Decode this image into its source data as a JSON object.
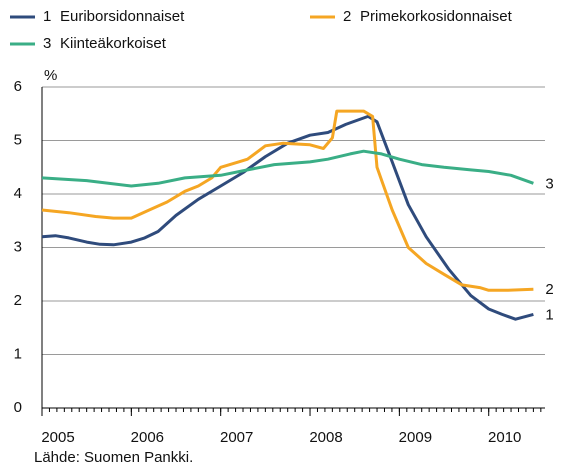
{
  "chart_data": {
    "type": "line",
    "y_label": "%",
    "source": "Lähde: Suomen Pankki.",
    "xlim": [
      2005,
      2010.63
    ],
    "xticks": [
      2005,
      2006,
      2007,
      2008,
      2009,
      2010
    ],
    "ylim": [
      0,
      6
    ],
    "yticks": [
      0,
      1,
      2,
      3,
      4,
      5,
      6
    ],
    "grid": true,
    "legend": "top",
    "series": [
      {
        "label": "1",
        "name": "Euriborsidonnaiset",
        "color": "#2f4b7c",
        "x": [
          2005.0,
          2005.15,
          2005.3,
          2005.5,
          2005.65,
          2005.8,
          2006.0,
          2006.15,
          2006.3,
          2006.5,
          2006.75,
          2007.0,
          2007.25,
          2007.5,
          2007.75,
          2008.0,
          2008.2,
          2008.4,
          2008.65,
          2008.75,
          2008.92,
          2009.1,
          2009.3,
          2009.55,
          2009.8,
          2010.0,
          2010.15,
          2010.3,
          2010.5
        ],
        "values": [
          3.2,
          3.22,
          3.18,
          3.1,
          3.06,
          3.05,
          3.1,
          3.18,
          3.3,
          3.6,
          3.9,
          4.15,
          4.4,
          4.7,
          4.95,
          5.1,
          5.15,
          5.3,
          5.45,
          5.35,
          4.6,
          3.8,
          3.2,
          2.6,
          2.1,
          1.85,
          1.75,
          1.66,
          1.75
        ]
      },
      {
        "label": "2",
        "name": "Primekorkosidonnaiset",
        "color": "#f5a623",
        "x": [
          2005.0,
          2005.3,
          2005.6,
          2005.8,
          2006.0,
          2006.2,
          2006.4,
          2006.6,
          2006.75,
          2006.9,
          2007.0,
          2007.2,
          2007.3,
          2007.5,
          2007.7,
          2008.0,
          2008.15,
          2008.25,
          2008.3,
          2008.6,
          2008.7,
          2008.75,
          2008.92,
          2009.1,
          2009.3,
          2009.5,
          2009.7,
          2009.9,
          2010.0,
          2010.2,
          2010.5
        ],
        "values": [
          3.7,
          3.65,
          3.58,
          3.55,
          3.55,
          3.7,
          3.85,
          4.05,
          4.15,
          4.3,
          4.5,
          4.6,
          4.65,
          4.9,
          4.95,
          4.92,
          4.85,
          5.05,
          5.55,
          5.55,
          5.45,
          4.5,
          3.7,
          3.0,
          2.7,
          2.5,
          2.3,
          2.25,
          2.2,
          2.2,
          2.22
        ]
      },
      {
        "label": "3",
        "name": "Kiinteäkorkoiset",
        "color": "#3aae86",
        "x": [
          2005.0,
          2005.5,
          2006.0,
          2006.3,
          2006.6,
          2007.0,
          2007.3,
          2007.6,
          2008.0,
          2008.2,
          2008.45,
          2008.6,
          2008.8,
          2009.0,
          2009.25,
          2009.5,
          2009.8,
          2010.0,
          2010.25,
          2010.5
        ],
        "values": [
          4.3,
          4.25,
          4.15,
          4.2,
          4.3,
          4.35,
          4.45,
          4.55,
          4.6,
          4.65,
          4.75,
          4.8,
          4.75,
          4.65,
          4.55,
          4.5,
          4.45,
          4.42,
          4.35,
          4.2
        ]
      }
    ]
  }
}
